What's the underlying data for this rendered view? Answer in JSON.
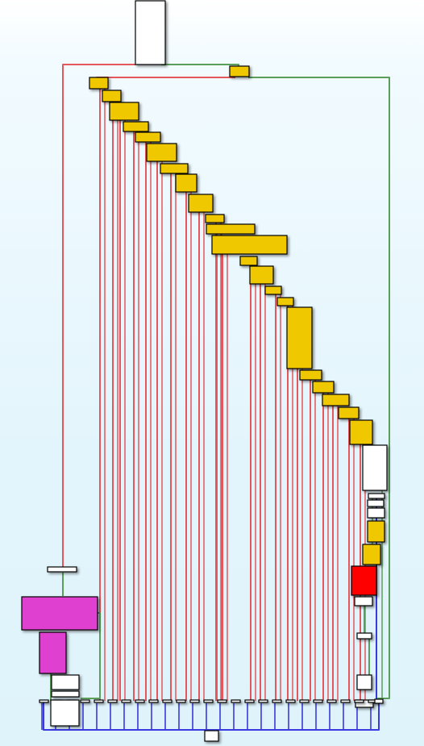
{
  "graph_view": {
    "colors": {
      "background_top": "#ffffff",
      "background_bottom": "#dff3fb",
      "edge_false": "#e4575c",
      "edge_true": "#5a9e5a",
      "edge_unconditional": "#3a3ae0",
      "node_default": "#ffffff",
      "node_basic_block": "#f0c800",
      "node_highlight": "#e040d0",
      "node_current": "#ff0000"
    },
    "node_kinds": [
      "entry",
      "switch",
      "case",
      "case",
      "case",
      "case",
      "case",
      "case",
      "case",
      "case",
      "case",
      "case",
      "case",
      "case",
      "case",
      "case",
      "case",
      "case",
      "case",
      "case",
      "case",
      "case",
      "case",
      "default",
      "loop-head",
      "loop-body",
      "current",
      "join",
      "exit"
    ],
    "edge_kinds": [
      "false-branch",
      "true-branch",
      "unconditional"
    ]
  }
}
